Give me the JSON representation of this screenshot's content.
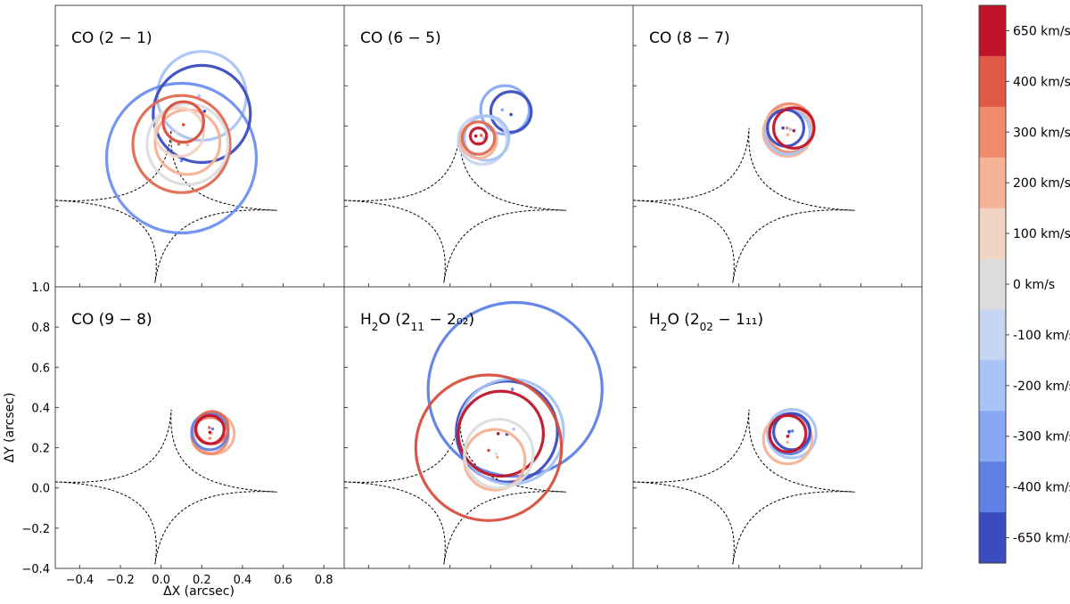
{
  "chart_data": {
    "type": "scatter",
    "xlabel": "ΔX (arcsec)",
    "ylabel": "ΔY (arcsec)",
    "xlim": [
      -0.52,
      0.9
    ],
    "ylim": [
      -0.4,
      1.0
    ],
    "xticks": [
      -0.4,
      -0.2,
      0.0,
      0.2,
      0.4,
      0.6,
      0.8
    ],
    "yticks": [
      -0.4,
      -0.2,
      0.0,
      0.2,
      0.4,
      0.6,
      0.8,
      1.0
    ],
    "xtick_labels": [
      "−0.4",
      "−0.2",
      "0.0",
      "0.2",
      "0.4",
      "0.6",
      "0.8"
    ],
    "ytick_labels": [
      "−0.4",
      "−0.2",
      "0.0",
      "0.2",
      "0.4",
      "0.6",
      "0.8",
      "1.0"
    ],
    "caustic": {
      "cusps": [
        [
          -0.52,
          0.03
        ],
        [
          0.05,
          0.39
        ],
        [
          0.57,
          -0.02
        ],
        [
          -0.03,
          -0.38
        ]
      ]
    },
    "colorbar": {
      "labels": [
        "650 km/s",
        "400 km/s",
        "300 km/s",
        "200 km/s",
        "100 km/s",
        "0 km/s",
        "-100 km/s",
        "-200 km/s",
        "-300 km/s",
        "-400 km/s",
        "-650 km/s"
      ],
      "colors": [
        "#c0142a",
        "#de5a47",
        "#f08a6c",
        "#f6b294",
        "#f1d3c3",
        "#dcdcdc",
        "#c6d6f2",
        "#a8c4f4",
        "#88a8f4",
        "#5f81e6",
        "#3b4cc0"
      ]
    },
    "panels": [
      {
        "title_main": "CO (2 − 1)",
        "title_sub1": "",
        "title_mid": "",
        "title_sub2": "",
        "title_end": "",
        "show_xticks": false,
        "show_yticks": false,
        "sources": [
          {
            "x": 0.2,
            "y": 0.55,
            "r": 0.22,
            "color": "#a8c4f4"
          },
          {
            "x": 0.1,
            "y": 0.24,
            "r": 0.37,
            "color": "#6d8ff0"
          },
          {
            "x": 0.2,
            "y": 0.46,
            "r": 0.24,
            "color": "#3b4cc0"
          },
          {
            "x": 0.1,
            "y": 0.31,
            "r": 0.24,
            "color": "#e06a52"
          },
          {
            "x": 0.13,
            "y": 0.32,
            "r": 0.16,
            "color": "#f6b294"
          },
          {
            "x": 0.13,
            "y": 0.31,
            "r": 0.2,
            "color": "#dcdcdc"
          },
          {
            "x": 0.09,
            "y": 0.37,
            "r": 0.12,
            "color": "#f1d3c3"
          },
          {
            "x": 0.11,
            "y": 0.42,
            "r": 0.1,
            "color": "#d7503f"
          }
        ]
      },
      {
        "title_main": "CO (6 − 5)",
        "title_sub1": "",
        "title_mid": "",
        "title_sub2": "",
        "title_end": "",
        "show_xticks": false,
        "show_yticks": false,
        "sources": [
          {
            "x": 0.27,
            "y": 0.48,
            "r": 0.12,
            "color": "#88a8f4"
          },
          {
            "x": 0.3,
            "y": 0.47,
            "r": 0.1,
            "color": "#3b4cc0"
          },
          {
            "x": 0.16,
            "y": 0.33,
            "r": 0.12,
            "color": "#c6d6f2"
          },
          {
            "x": 0.18,
            "y": 0.34,
            "r": 0.11,
            "color": "#a8c4f4"
          },
          {
            "x": 0.14,
            "y": 0.33,
            "r": 0.09,
            "color": "#f6b294"
          },
          {
            "x": 0.14,
            "y": 0.34,
            "r": 0.08,
            "color": "#e06a52"
          },
          {
            "x": 0.14,
            "y": 0.35,
            "r": 0.04,
            "color": "#c0142a"
          }
        ]
      },
      {
        "title_main": "CO (8 − 7)",
        "title_sub1": "",
        "title_mid": "",
        "title_sub2": "",
        "title_end": "",
        "show_xticks": false,
        "show_yticks": false,
        "sources": [
          {
            "x": 0.25,
            "y": 0.39,
            "r": 0.12,
            "color": "#f08a6c"
          },
          {
            "x": 0.24,
            "y": 0.37,
            "r": 0.12,
            "color": "#f6b294"
          },
          {
            "x": 0.24,
            "y": 0.37,
            "r": 0.11,
            "color": "#a8c4f4"
          },
          {
            "x": 0.23,
            "y": 0.39,
            "r": 0.09,
            "color": "#3b4cc0"
          },
          {
            "x": 0.27,
            "y": 0.39,
            "r": 0.1,
            "color": "#c0142a"
          }
        ]
      },
      {
        "title_main": "CO (9 − 8)",
        "title_sub1": "",
        "title_mid": "",
        "title_sub2": "",
        "title_end": "",
        "show_xticks": true,
        "show_yticks": true,
        "sources": [
          {
            "x": 0.26,
            "y": 0.27,
            "r": 0.1,
            "color": "#f6b294"
          },
          {
            "x": 0.24,
            "y": 0.26,
            "r": 0.09,
            "color": "#f08a6c"
          },
          {
            "x": 0.24,
            "y": 0.28,
            "r": 0.09,
            "color": "#5f81e6"
          },
          {
            "x": 0.25,
            "y": 0.3,
            "r": 0.08,
            "color": "#e06a52"
          },
          {
            "x": 0.24,
            "y": 0.29,
            "r": 0.07,
            "color": "#c0142a"
          }
        ]
      },
      {
        "title_main": "H",
        "title_sub1": "2",
        "title_mid": "O (2",
        "title_sub2": "11",
        "title_end": " − 2₀₂)",
        "show_xticks": false,
        "show_yticks": false,
        "sources": [
          {
            "x": 0.32,
            "y": 0.49,
            "r": 0.43,
            "color": "#5f81e6"
          },
          {
            "x": 0.28,
            "y": 0.28,
            "r": 0.25,
            "color": "#3b4cc0"
          },
          {
            "x": 0.3,
            "y": 0.28,
            "r": 0.26,
            "color": "#a8c4f4"
          },
          {
            "x": 0.25,
            "y": 0.27,
            "r": 0.21,
            "color": "#c0142a"
          },
          {
            "x": 0.19,
            "y": 0.2,
            "r": 0.36,
            "color": "#d7503f"
          },
          {
            "x": 0.22,
            "y": 0.14,
            "r": 0.15,
            "color": "#f6b294"
          },
          {
            "x": 0.24,
            "y": 0.17,
            "r": 0.17,
            "color": "#dcdcdc"
          }
        ]
      },
      {
        "title_main": "H",
        "title_sub1": "2",
        "title_mid": "O (2",
        "title_sub2": "02",
        "title_end": " − 1₁₁)",
        "show_xticks": false,
        "show_yticks": false,
        "sources": [
          {
            "x": 0.26,
            "y": 0.27,
            "r": 0.12,
            "color": "#a8c4f4"
          },
          {
            "x": 0.24,
            "y": 0.24,
            "r": 0.12,
            "color": "#f6b294"
          },
          {
            "x": 0.25,
            "y": 0.27,
            "r": 0.1,
            "color": "#5f81e6"
          },
          {
            "x": 0.26,
            "y": 0.28,
            "r": 0.09,
            "color": "#3b4cc0"
          },
          {
            "x": 0.24,
            "y": 0.27,
            "r": 0.09,
            "color": "#c0142a"
          }
        ]
      }
    ]
  }
}
